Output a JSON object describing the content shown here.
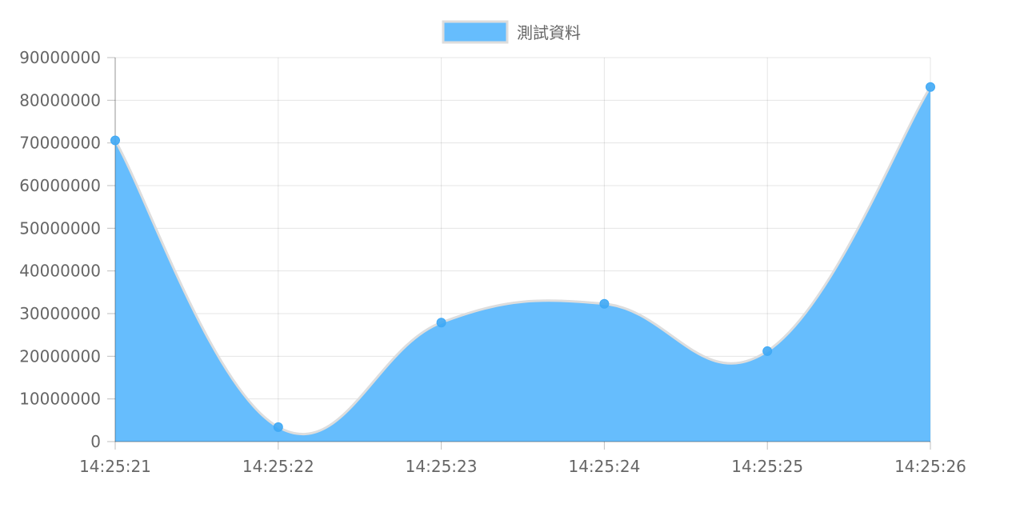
{
  "chart_data": {
    "type": "area",
    "legend_position": "top",
    "grid": true,
    "x": [
      "14:25:21",
      "14:25:22",
      "14:25:23",
      "14:25:24",
      "14:25:25",
      "14:25:26"
    ],
    "series": [
      {
        "name": "測試資料",
        "values": [
          70600000,
          3400000,
          27900000,
          32300000,
          21200000,
          83100000
        ],
        "fill_color": "#66bdfd",
        "line_color": "#dddddd",
        "point_color": "#3fa9f5"
      }
    ],
    "ylim": [
      0,
      90000000
    ],
    "yticks": [
      "0",
      "10000000",
      "20000000",
      "30000000",
      "40000000",
      "50000000",
      "60000000",
      "70000000",
      "80000000",
      "90000000"
    ]
  }
}
